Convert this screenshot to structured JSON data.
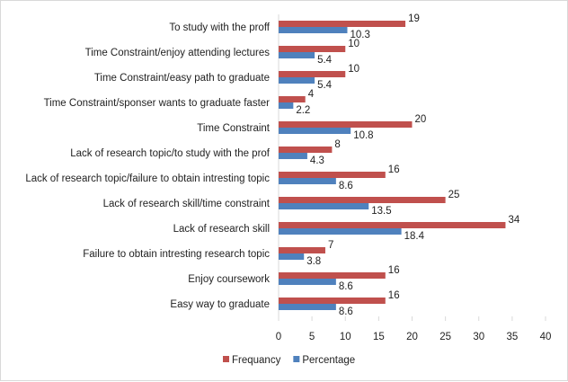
{
  "chart_data": {
    "type": "bar",
    "orientation": "horizontal",
    "title": "",
    "xlabel": "",
    "ylabel": "",
    "xlim": [
      0,
      40
    ],
    "xticks": [
      0,
      5,
      10,
      15,
      20,
      25,
      30,
      35,
      40
    ],
    "grid": false,
    "legend_position": "bottom",
    "categories": [
      "To study with the proff",
      "Time Constraint/enjoy attending lectures",
      "Time Constraint/easy path to graduate",
      "Time Constraint/sponser wants to graduate faster",
      "Time Constraint",
      "Lack of research topic/to study with the prof",
      "Lack of research topic/failure to obtain intresting topic",
      "Lack of research skill/time constraint",
      "Lack of research skill",
      "Failure to obtain intresting research topic",
      "Enjoy coursework",
      "Easy way to graduate"
    ],
    "series": [
      {
        "name": "Frequancy",
        "color": "#c0504d",
        "values": [
          19,
          10,
          10,
          4,
          20,
          8,
          16,
          25,
          34,
          7,
          16,
          16
        ]
      },
      {
        "name": "Percentage",
        "color": "#4f81bd",
        "values": [
          10.3,
          5.4,
          5.4,
          2.2,
          10.8,
          4.3,
          8.6,
          13.5,
          18.4,
          3.8,
          8.6,
          8.6
        ]
      }
    ]
  }
}
